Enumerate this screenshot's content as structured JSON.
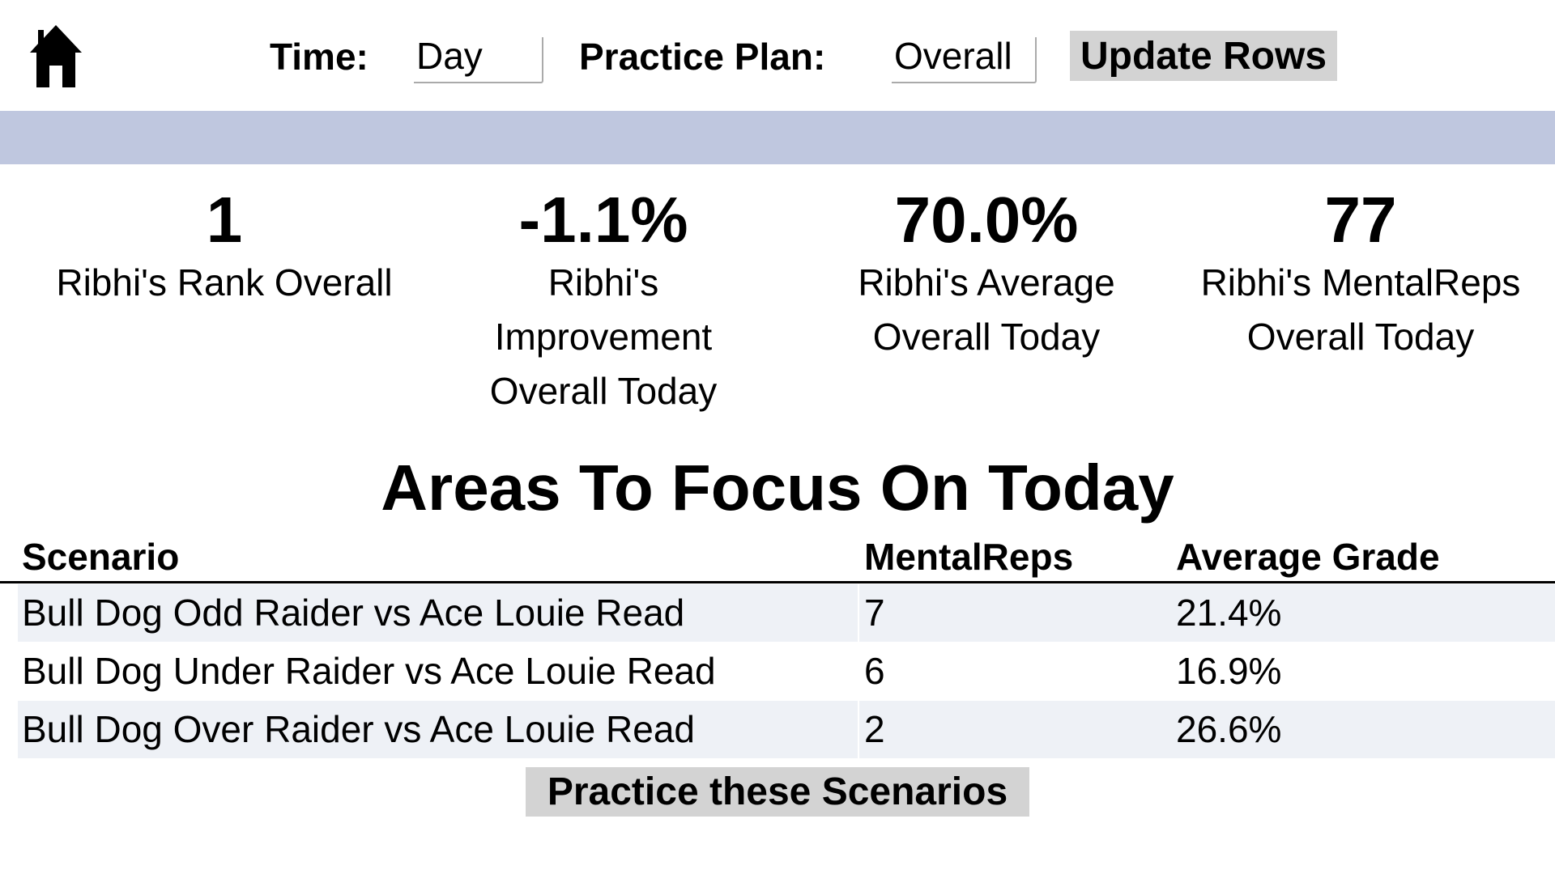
{
  "header": {
    "home_icon": "home-icon",
    "time_label": "Time:",
    "time_value": "Day",
    "plan_label": "Practice Plan:",
    "plan_value": "Overall",
    "update_button": "Update Rows"
  },
  "colors": {
    "band": "#bfc7df",
    "button_bg": "#d3d3d3",
    "row_stripe": "#eef1f6"
  },
  "stats": [
    {
      "value": "1",
      "caption": [
        "Ribhi's Rank Overall"
      ]
    },
    {
      "value": "-1.1%",
      "caption": [
        "Ribhi's",
        "Improvement",
        "Overall Today"
      ]
    },
    {
      "value": "70.0%",
      "caption": [
        "Ribhi's Average",
        "Overall Today"
      ]
    },
    {
      "value": "77",
      "caption": [
        "Ribhi's MentalReps",
        "Overall Today"
      ]
    }
  ],
  "focus": {
    "title": "Areas To Focus On Today",
    "columns": [
      "Scenario",
      "MentalReps",
      "Average Grade"
    ],
    "rows": [
      [
        "Bull Dog Odd Raider vs Ace Louie Read",
        "7",
        "21.4%"
      ],
      [
        "Bull Dog Under Raider vs Ace Louie Read",
        "6",
        "16.9%"
      ],
      [
        "Bull Dog Over Raider vs Ace Louie Read",
        "2",
        "26.6%"
      ]
    ],
    "practice_button": "Practice these Scenarios"
  }
}
